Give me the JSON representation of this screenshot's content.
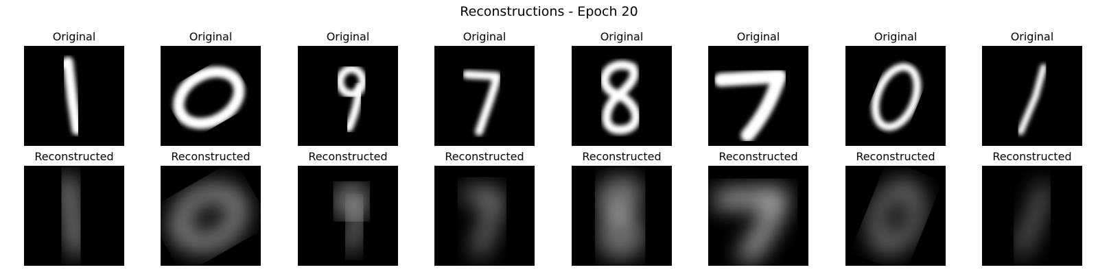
{
  "chart_data": {
    "type": "image-grid",
    "title": "Reconstructions - Epoch 20",
    "rows": [
      {
        "label": "Original",
        "kind": "original"
      },
      {
        "label": "Reconstructed",
        "kind": "reconstructed"
      }
    ],
    "digits": [
      "1",
      "0",
      "9",
      "7",
      "8",
      "7",
      "0",
      "1"
    ],
    "colormap": "gray",
    "axes": "off"
  }
}
